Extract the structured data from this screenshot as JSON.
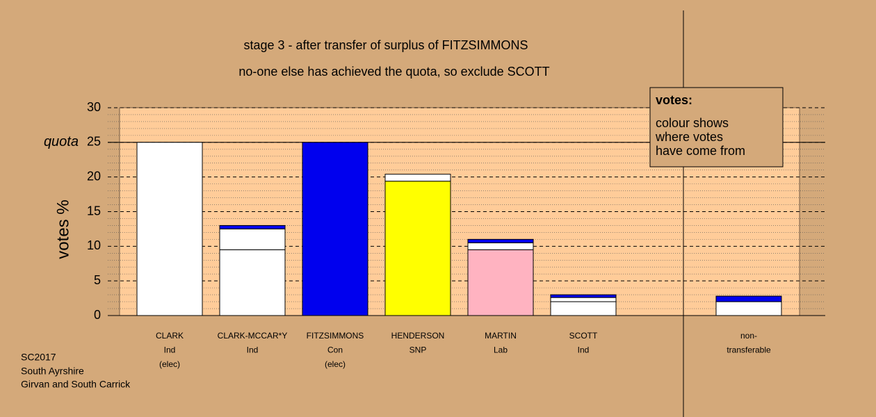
{
  "chart_data": {
    "type": "stacked-bar",
    "title_lines": [
      "stage 3 - after transfer of surplus of FITZSIMMONS",
      "no-one else has achieved the quota, so exclude SCOTT"
    ],
    "y_label": "votes %",
    "categories": [
      [
        "CLARK",
        "Ind",
        "(elec)"
      ],
      [
        "CLARK-MCCAR*Y",
        "Ind"
      ],
      [
        "FITZSIMMONS",
        "Con",
        "(elec)"
      ],
      [
        "HENDERSON",
        "SNP"
      ],
      [
        "MARTIN",
        "Lab"
      ],
      [
        "SCOTT",
        "Ind"
      ],
      null,
      [
        "non-",
        "transferable"
      ]
    ],
    "series": [
      {
        "colors": [
          "#ffffff",
          "#ffffff",
          "#0000ee",
          "#ffff00",
          "#ffb3c1",
          "#ffffff",
          null,
          "#ffffff"
        ],
        "values": [
          25,
          9.5,
          25,
          19.4,
          9.5,
          2.0,
          null,
          2.0
        ]
      },
      {
        "color": "#ffffff",
        "values": [
          null,
          3.0,
          null,
          1.0,
          1.0,
          0.6,
          null,
          null
        ]
      },
      {
        "color": "#0000ee",
        "values": [
          null,
          0.5,
          null,
          null,
          0.5,
          0.4,
          null,
          0.8
        ]
      }
    ],
    "ylim": [
      0,
      30
    ],
    "yticks": [
      0,
      5,
      10,
      15,
      20,
      25,
      30
    ],
    "minor_yticks": [
      1,
      2,
      3,
      4,
      6,
      7,
      8,
      9,
      11,
      12,
      13,
      14,
      16,
      17,
      18,
      19,
      21,
      22,
      23,
      24,
      26,
      27,
      28,
      29
    ],
    "quota": 25,
    "quota_label": "quota",
    "legend_title": "votes:",
    "legend_lines": [
      "colour shows",
      "where votes",
      "have come from"
    ],
    "footer_lines": [
      "SC2017",
      "South Ayrshire",
      "Girvan and South Carrick"
    ]
  }
}
